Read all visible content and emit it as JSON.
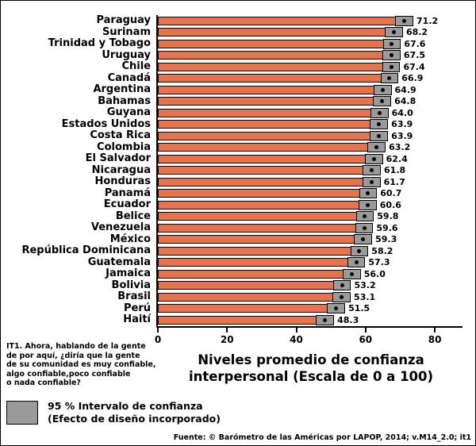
{
  "chart_data": {
    "type": "bar",
    "orientation": "horizontal",
    "xlabel": "Niveles promedio de confianza\ninterpersonal (Escala de 0 a 100)",
    "xlim": [
      0,
      88
    ],
    "xticks": [
      0,
      20,
      40,
      60,
      80
    ],
    "categories": [
      "Paraguay",
      "Surinam",
      "Trinidad y Tobago",
      "Uruguay",
      "Chile",
      "Canadá",
      "Argentina",
      "Bahamas",
      "Guyana",
      "Estados Unidos",
      "Costa Rica",
      "Colombia",
      "El Salvador",
      "Nicaragua",
      "Honduras",
      "Panamá",
      "Ecuador",
      "Belice",
      "Venezuela",
      "México",
      "República Dominicana",
      "Guatemala",
      "Jamaica",
      "Bolivia",
      "Brasil",
      "Perú",
      "Haití"
    ],
    "values": [
      71.2,
      68.2,
      67.6,
      67.5,
      67.4,
      66.9,
      64.9,
      64.8,
      64.0,
      63.9,
      63.9,
      63.2,
      62.4,
      61.8,
      61.7,
      60.7,
      60.6,
      59.8,
      59.6,
      59.3,
      58.2,
      57.3,
      56.0,
      53.2,
      53.1,
      51.5,
      48.3
    ],
    "ci_halfwidth": 2.6,
    "bar_color": "#E5734D",
    "ci_color": "#9A9A9A",
    "grid": false,
    "legend_position": "bottom-left"
  },
  "question_note": "IT1. Ahora, hablando de la gente\nde por aquí, ¿diría que la gente\nde su comunidad es muy confiable,\nalgo confiable,poco confiable\no nada confiable?",
  "legend": {
    "label": "95 % Intervalo de confianza\n(Efecto de diseño incorporado)"
  },
  "source": "Fuente: © Barómetro de las Américas por LAPOP, 2014; v.M14_2.0; it1"
}
